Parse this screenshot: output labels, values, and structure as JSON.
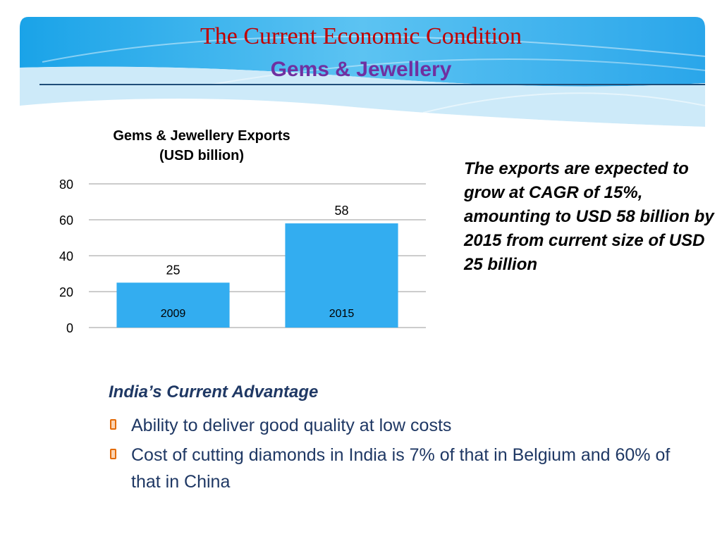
{
  "slide": {
    "title": "The Current Economic Condition",
    "subtitle": "Gems & Jewellery"
  },
  "chart_data": {
    "type": "bar",
    "title_line1": "Gems & Jewellery Exports",
    "title_line2": "(USD billion)",
    "categories": [
      "2009",
      "2015"
    ],
    "values": [
      25,
      58
    ],
    "yticks": [
      0,
      20,
      40,
      60,
      80
    ],
    "ylim": [
      0,
      80
    ],
    "grid": true,
    "bar_color": "#33adf0",
    "xlabel": "",
    "ylabel": ""
  },
  "callout": {
    "text": "The exports are expected to grow at CAGR of 15%, amounting to USD 58 billion by 2015 from current size of USD 25 billion"
  },
  "advantage": {
    "heading": "India’s Current Advantage",
    "items": [
      "Ability to deliver good quality at low costs",
      "Cost of cutting diamonds in India is 7% of that in Belgium and 60% of that in China"
    ]
  },
  "colors": {
    "title": "#c00000",
    "subtitle": "#7030a0",
    "body_text": "#1f3864",
    "banner": "#1e9ae0"
  }
}
